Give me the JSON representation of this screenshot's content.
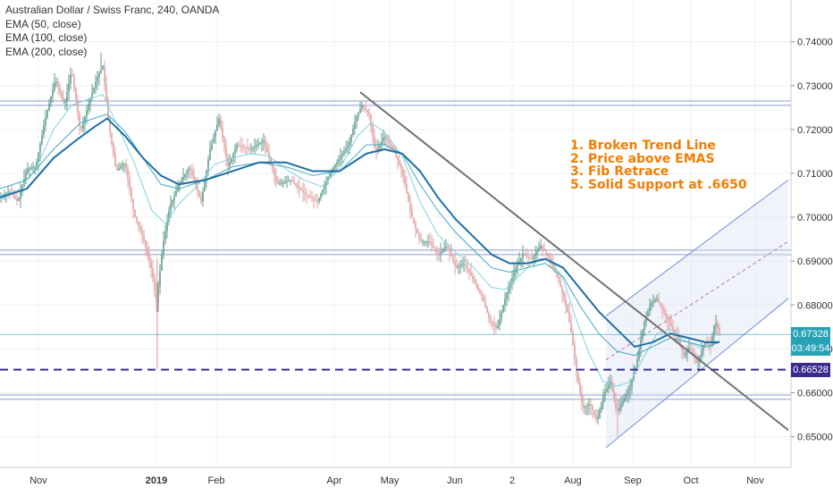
{
  "legend": {
    "title": "Australian Dollar / Swiss Franc, 240, OANDA",
    "ema50": "EMA (50, close)",
    "ema100": "EMA (100, close)",
    "ema200": "EMA (200, close)"
  },
  "annotations": [
    "1. Broken Trend Line",
    "2. Price above EMAS",
    "3. Fib Retrace",
    "5. Solid Support at .6650"
  ],
  "price_tags": {
    "last_price": "0.67328",
    "countdown": "03:49:54",
    "support": "0.66528"
  },
  "colors": {
    "candle_up": "#5f9c8e",
    "candle_down": "#e0a0a0",
    "ema50": "#7fd3de",
    "ema100": "#3fa9bd",
    "ema200": "#1e6fa6",
    "trend_line": "#707070",
    "support_line": "#3b2a8c",
    "annotation_text": "#f57c00",
    "last_price_tag": "#26a2b6",
    "countdown_tag": "#26a2b6",
    "support_tag": "#3b2a8c",
    "horizontal_levels": "#8a9bd1",
    "channel": "#6f8fd9"
  },
  "chart_data": {
    "type": "line",
    "title": "Australian Dollar / Swiss Franc, 240, OANDA",
    "ylim": [
      0.643,
      0.7495
    ],
    "y_ticks": [
      0.65,
      0.66,
      0.67,
      0.68,
      0.69,
      0.7,
      0.71,
      0.72,
      0.73,
      0.74
    ],
    "y_tick_labels": [
      "0.65000",
      "0.66000",
      "0.67000",
      "0.68000",
      "0.69000",
      "0.70000",
      "0.71000",
      "0.72000",
      "0.73000",
      "0.74000"
    ],
    "x_ticks": [
      {
        "label": "Nov",
        "t": 43
      },
      {
        "label": "2019",
        "t": 175
      },
      {
        "label": "Feb",
        "t": 242
      },
      {
        "label": "Apr",
        "t": 374
      },
      {
        "label": "May",
        "t": 436
      },
      {
        "label": "Jun",
        "t": 509
      },
      {
        "label": "2",
        "t": 573
      },
      {
        "label": "Aug",
        "t": 641
      },
      {
        "label": "Sep",
        "t": 708
      },
      {
        "label": "Oct",
        "t": 773
      },
      {
        "label": "Nov",
        "t": 845
      }
    ],
    "x_range": [
      0,
      885
    ],
    "grid": true,
    "price": [
      [
        0,
        0.7045
      ],
      [
        10,
        0.706
      ],
      [
        20,
        0.7035
      ],
      [
        30,
        0.711
      ],
      [
        40,
        0.7115
      ],
      [
        50,
        0.722
      ],
      [
        62,
        0.7315
      ],
      [
        72,
        0.7255
      ],
      [
        80,
        0.7335
      ],
      [
        90,
        0.7195
      ],
      [
        100,
        0.7265
      ],
      [
        108,
        0.7315
      ],
      [
        115,
        0.7345
      ],
      [
        122,
        0.7205
      ],
      [
        130,
        0.7105
      ],
      [
        140,
        0.7125
      ],
      [
        150,
        0.7005
      ],
      [
        160,
        0.6955
      ],
      [
        170,
        0.6875
      ],
      [
        175,
        0.6805
      ],
      [
        182,
        0.6935
      ],
      [
        190,
        0.7025
      ],
      [
        200,
        0.7075
      ],
      [
        212,
        0.7115
      ],
      [
        225,
        0.7035
      ],
      [
        235,
        0.7155
      ],
      [
        245,
        0.7225
      ],
      [
        255,
        0.7115
      ],
      [
        265,
        0.7165
      ],
      [
        280,
        0.7155
      ],
      [
        295,
        0.7175
      ],
      [
        310,
        0.7075
      ],
      [
        325,
        0.7085
      ],
      [
        340,
        0.7055
      ],
      [
        355,
        0.7035
      ],
      [
        370,
        0.7105
      ],
      [
        380,
        0.7135
      ],
      [
        390,
        0.7165
      ],
      [
        398,
        0.7225
      ],
      [
        405,
        0.7255
      ],
      [
        413,
        0.7235
      ],
      [
        420,
        0.7145
      ],
      [
        430,
        0.7185
      ],
      [
        440,
        0.7155
      ],
      [
        450,
        0.7105
      ],
      [
        460,
        0.7005
      ],
      [
        470,
        0.6945
      ],
      [
        480,
        0.6945
      ],
      [
        490,
        0.6915
      ],
      [
        500,
        0.6935
      ],
      [
        510,
        0.6885
      ],
      [
        520,
        0.6895
      ],
      [
        530,
        0.6855
      ],
      [
        540,
        0.6815
      ],
      [
        548,
        0.6765
      ],
      [
        556,
        0.6745
      ],
      [
        565,
        0.6815
      ],
      [
        575,
        0.6875
      ],
      [
        585,
        0.6915
      ],
      [
        595,
        0.6905
      ],
      [
        605,
        0.6935
      ],
      [
        615,
        0.6905
      ],
      [
        625,
        0.6855
      ],
      [
        635,
        0.6785
      ],
      [
        640,
        0.6725
      ],
      [
        645,
        0.6645
      ],
      [
        652,
        0.6565
      ],
      [
        660,
        0.6575
      ],
      [
        668,
        0.6535
      ],
      [
        675,
        0.6595
      ],
      [
        683,
        0.6625
      ],
      [
        690,
        0.6555
      ],
      [
        698,
        0.6585
      ],
      [
        705,
        0.6615
      ],
      [
        712,
        0.6665
      ],
      [
        720,
        0.6755
      ],
      [
        728,
        0.6805
      ],
      [
        735,
        0.6815
      ],
      [
        742,
        0.6785
      ],
      [
        750,
        0.6755
      ],
      [
        758,
        0.6725
      ],
      [
        765,
        0.6685
      ],
      [
        772,
        0.6705
      ],
      [
        780,
        0.6665
      ],
      [
        788,
        0.6715
      ],
      [
        795,
        0.6705
      ],
      [
        800,
        0.6765
      ],
      [
        805,
        0.6735
      ]
    ],
    "ema50": [
      [
        0,
        0.705
      ],
      [
        20,
        0.706
      ],
      [
        40,
        0.711
      ],
      [
        60,
        0.72
      ],
      [
        80,
        0.7255
      ],
      [
        100,
        0.727
      ],
      [
        115,
        0.728
      ],
      [
        130,
        0.7215
      ],
      [
        150,
        0.7125
      ],
      [
        170,
        0.7015
      ],
      [
        185,
        0.6985
      ],
      [
        200,
        0.703
      ],
      [
        220,
        0.707
      ],
      [
        240,
        0.712
      ],
      [
        260,
        0.7135
      ],
      [
        280,
        0.7145
      ],
      [
        300,
        0.714
      ],
      [
        320,
        0.711
      ],
      [
        340,
        0.7085
      ],
      [
        360,
        0.707
      ],
      [
        380,
        0.711
      ],
      [
        400,
        0.7185
      ],
      [
        415,
        0.7215
      ],
      [
        430,
        0.7195
      ],
      [
        450,
        0.714
      ],
      [
        470,
        0.7035
      ],
      [
        490,
        0.696
      ],
      [
        510,
        0.692
      ],
      [
        530,
        0.6885
      ],
      [
        550,
        0.684
      ],
      [
        565,
        0.6835
      ],
      [
        580,
        0.6865
      ],
      [
        600,
        0.6905
      ],
      [
        615,
        0.6905
      ],
      [
        630,
        0.686
      ],
      [
        645,
        0.6765
      ],
      [
        660,
        0.6685
      ],
      [
        675,
        0.6625
      ],
      [
        690,
        0.6615
      ],
      [
        705,
        0.6625
      ],
      [
        720,
        0.668
      ],
      [
        735,
        0.6735
      ],
      [
        750,
        0.6745
      ],
      [
        765,
        0.672
      ],
      [
        780,
        0.6705
      ],
      [
        795,
        0.6705
      ],
      [
        805,
        0.672
      ]
    ],
    "ema100": [
      [
        0,
        0.7065
      ],
      [
        30,
        0.7085
      ],
      [
        60,
        0.7155
      ],
      [
        90,
        0.7215
      ],
      [
        120,
        0.7235
      ],
      [
        140,
        0.7195
      ],
      [
        160,
        0.7135
      ],
      [
        180,
        0.7075
      ],
      [
        200,
        0.7065
      ],
      [
        230,
        0.7085
      ],
      [
        260,
        0.7115
      ],
      [
        290,
        0.7125
      ],
      [
        320,
        0.7115
      ],
      [
        350,
        0.7095
      ],
      [
        380,
        0.7105
      ],
      [
        410,
        0.7165
      ],
      [
        430,
        0.7165
      ],
      [
        450,
        0.7145
      ],
      [
        470,
        0.7075
      ],
      [
        490,
        0.7015
      ],
      [
        510,
        0.6965
      ],
      [
        530,
        0.6925
      ],
      [
        550,
        0.6885
      ],
      [
        570,
        0.6875
      ],
      [
        590,
        0.6885
      ],
      [
        610,
        0.6895
      ],
      [
        630,
        0.6865
      ],
      [
        650,
        0.6795
      ],
      [
        670,
        0.6735
      ],
      [
        690,
        0.6695
      ],
      [
        710,
        0.6685
      ],
      [
        730,
        0.6705
      ],
      [
        750,
        0.6725
      ],
      [
        770,
        0.6715
      ],
      [
        790,
        0.6705
      ],
      [
        805,
        0.6715
      ]
    ],
    "ema200": [
      [
        0,
        0.7045
      ],
      [
        30,
        0.7065
      ],
      [
        60,
        0.7135
      ],
      [
        85,
        0.7175
      ],
      [
        105,
        0.7205
      ],
      [
        120,
        0.7225
      ],
      [
        140,
        0.7185
      ],
      [
        160,
        0.7135
      ],
      [
        180,
        0.7095
      ],
      [
        200,
        0.7075
      ],
      [
        230,
        0.7085
      ],
      [
        260,
        0.7105
      ],
      [
        290,
        0.7125
      ],
      [
        320,
        0.7125
      ],
      [
        350,
        0.7105
      ],
      [
        380,
        0.7105
      ],
      [
        410,
        0.7145
      ],
      [
        430,
        0.7155
      ],
      [
        450,
        0.7145
      ],
      [
        470,
        0.7105
      ],
      [
        490,
        0.7045
      ],
      [
        510,
        0.6995
      ],
      [
        530,
        0.6955
      ],
      [
        550,
        0.6915
      ],
      [
        570,
        0.6895
      ],
      [
        590,
        0.6895
      ],
      [
        610,
        0.6905
      ],
      [
        630,
        0.6885
      ],
      [
        650,
        0.6835
      ],
      [
        670,
        0.6785
      ],
      [
        690,
        0.6745
      ],
      [
        710,
        0.6705
      ],
      [
        730,
        0.6715
      ],
      [
        750,
        0.6735
      ],
      [
        770,
        0.6725
      ],
      [
        790,
        0.6715
      ],
      [
        805,
        0.6715
      ]
    ],
    "trend_line": [
      [
        403,
        0.7285
      ],
      [
        882,
        0.6515
      ]
    ],
    "support_level": 0.66528,
    "last_price_level": 0.67328,
    "horizontal_levels": [
      0.7255,
      0.7265,
      0.6915,
      0.6925,
      0.6585,
      0.6595
    ],
    "channel": {
      "lower": [
        [
          678,
          0.6475
        ],
        [
          882,
          0.6815
        ]
      ],
      "middle": [
        [
          678,
          0.6675
        ],
        [
          882,
          0.6945
        ]
      ],
      "upper": [
        [
          678,
          0.6775
        ],
        [
          882,
          0.7085
        ]
      ]
    }
  }
}
